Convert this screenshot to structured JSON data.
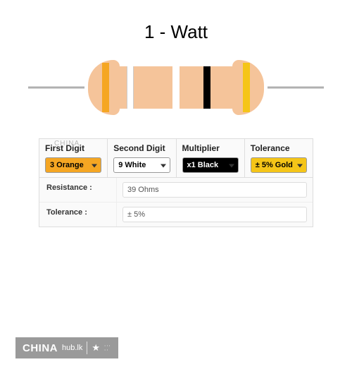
{
  "title": "1 - Watt",
  "resistor": {
    "body_color": "#f5c49a",
    "wire_color": "#b0b0b0",
    "bands": [
      {
        "name": "first-digit",
        "color": "#f5a623"
      },
      {
        "name": "second-digit",
        "color": "#ffffff"
      },
      {
        "name": "multiplier",
        "color": "#000000"
      },
      {
        "name": "tolerance",
        "color": "#f5c518"
      }
    ]
  },
  "selectors": [
    {
      "header": "First Digit",
      "value": "3 Orange",
      "bg": "#f5a623",
      "fg": "#000000"
    },
    {
      "header": "Second Digit",
      "value": "9 White",
      "bg": "#ffffff",
      "fg": "#000000"
    },
    {
      "header": "Multiplier",
      "value": "x1 Black",
      "bg": "#000000",
      "fg": "#ffffff"
    },
    {
      "header": "Tolerance",
      "value": "± 5% Gold",
      "bg": "#f5c518",
      "fg": "#000000"
    }
  ],
  "results": {
    "resistance_label": "Resistance :",
    "resistance_value": "39 Ohms",
    "tolerance_label": "Tolerance :",
    "tolerance_value": "± 5%"
  },
  "watermark_inline": "CHINA",
  "footer": {
    "main": "CHINA",
    "suffix": "hub.lk"
  }
}
